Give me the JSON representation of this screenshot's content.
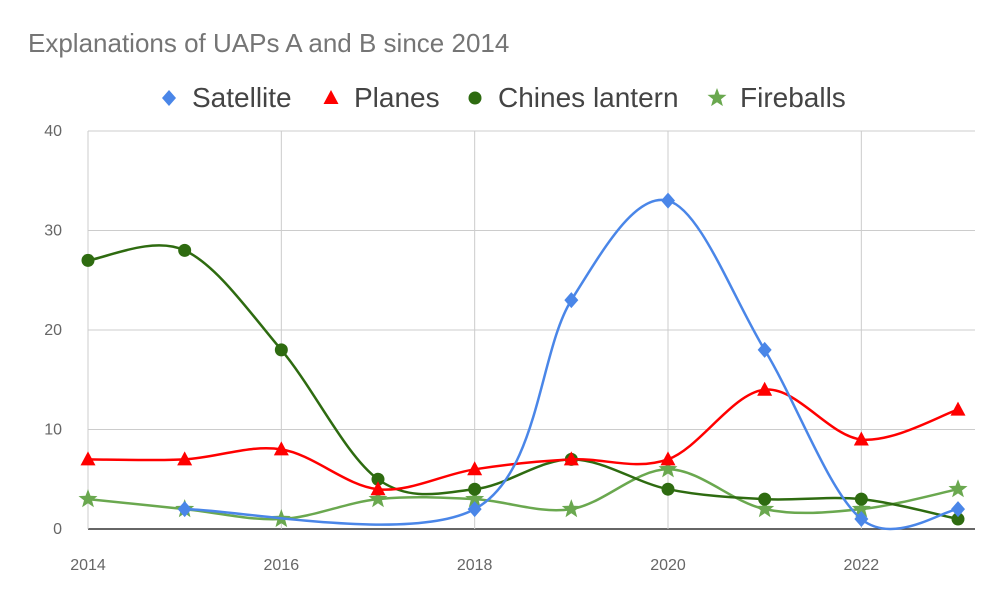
{
  "title": "Explanations of UAPs A and B since 2014",
  "chart_data": {
    "type": "line",
    "title": "Explanations of UAPs A and B since 2014",
    "xlabel": "",
    "ylabel": "",
    "x": [
      2014,
      2015,
      2016,
      2017,
      2018,
      2019,
      2020,
      2021,
      2022,
      2023
    ],
    "xlim": [
      2014,
      2023
    ],
    "ylim": [
      0,
      40
    ],
    "x_ticks": [
      "2014",
      "2016",
      "2018",
      "2020",
      "2022"
    ],
    "y_ticks": [
      "0",
      "10",
      "20",
      "30",
      "40"
    ],
    "grid": true,
    "legend_position": "top",
    "smooth": true,
    "series": [
      {
        "name": "Satellite",
        "color": "#4a86e8",
        "marker": "diamond",
        "points": [
          [
            2015,
            2
          ],
          [
            2018,
            2
          ],
          [
            2019,
            23
          ],
          [
            2020,
            33
          ],
          [
            2021,
            18
          ],
          [
            2022,
            1
          ],
          [
            2023,
            2
          ]
        ]
      },
      {
        "name": "Planes",
        "color": "#ff0000",
        "marker": "triangle",
        "points": [
          [
            2014,
            7
          ],
          [
            2015,
            7
          ],
          [
            2016,
            8
          ],
          [
            2017,
            4
          ],
          [
            2018,
            6
          ],
          [
            2019,
            7
          ],
          [
            2020,
            7
          ],
          [
            2021,
            14
          ],
          [
            2022,
            9
          ],
          [
            2023,
            12
          ]
        ]
      },
      {
        "name": "Chines lantern",
        "color": "#2e6b10",
        "marker": "circle",
        "points": [
          [
            2014,
            27
          ],
          [
            2015,
            28
          ],
          [
            2016,
            18
          ],
          [
            2017,
            5
          ],
          [
            2018,
            4
          ],
          [
            2019,
            7
          ],
          [
            2020,
            4
          ],
          [
            2021,
            3
          ],
          [
            2022,
            3
          ],
          [
            2023,
            1
          ]
        ]
      },
      {
        "name": "Fireballs",
        "color": "#6aa84f",
        "marker": "star",
        "points": [
          [
            2014,
            3
          ],
          [
            2015,
            2
          ],
          [
            2016,
            1
          ],
          [
            2017,
            3
          ],
          [
            2018,
            3
          ],
          [
            2019,
            2
          ],
          [
            2020,
            6
          ],
          [
            2021,
            2
          ],
          [
            2022,
            2
          ],
          [
            2023,
            4
          ]
        ]
      }
    ]
  }
}
